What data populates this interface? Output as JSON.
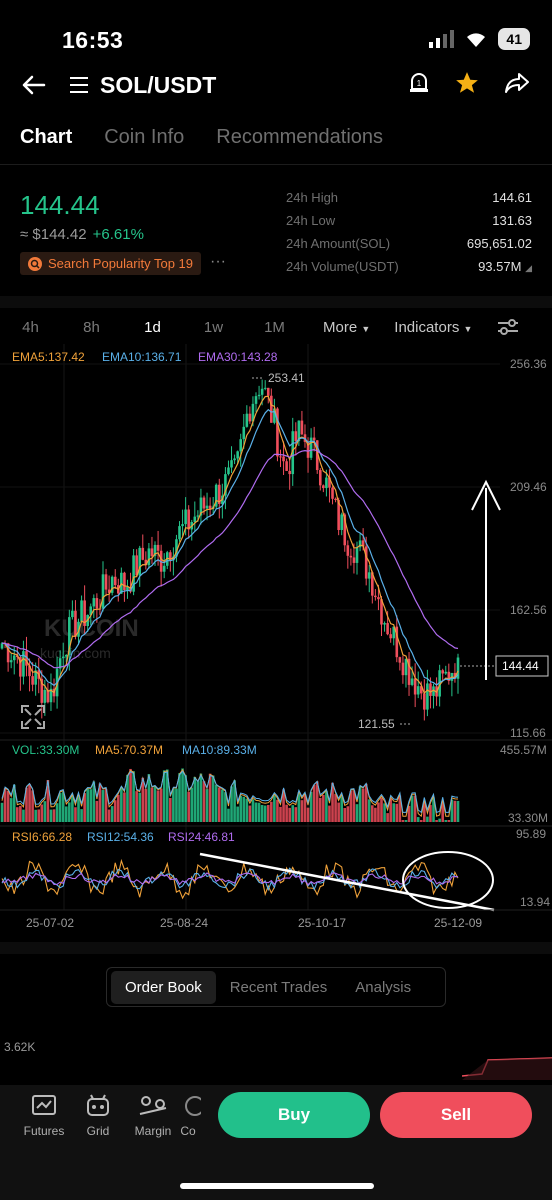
{
  "status": {
    "time": "16:53",
    "battery": "41"
  },
  "nav": {
    "title": "SOL/USDT"
  },
  "tabs": [
    {
      "label": "Chart"
    },
    {
      "label": "Coin Info"
    },
    {
      "label": "Recommendations"
    }
  ],
  "price": {
    "last": "144.44",
    "fiat": "≈ $144.42",
    "change": "+6.61%",
    "badge": "Search Popularity Top 19"
  },
  "stats": [
    {
      "label": "24h High",
      "value": "144.61"
    },
    {
      "label": "24h Low",
      "value": "131.63"
    },
    {
      "label": "24h Amount(SOL)",
      "value": "695,651.02"
    },
    {
      "label": "24h Volume(USDT)",
      "value": "93.57M"
    }
  ],
  "intervals": {
    "items": [
      "4h",
      "8h",
      "1d",
      "1w",
      "1M"
    ],
    "active": "1d",
    "more": "More",
    "indicators": "Indicators"
  },
  "chart": {
    "ema": {
      "ema5": "EMA5:137.42",
      "ema10": "EMA10:136.71",
      "ema30": "EMA30:143.28"
    },
    "price_axis": [
      "256.36",
      "209.46",
      "162.56",
      "115.66"
    ],
    "max_label": "253.41",
    "min_label": "121.55",
    "current_label": "144.44",
    "watermark": "KUCOIN",
    "watermark_url": "kucoin.com",
    "vol": {
      "vol": "VOL:33.30M",
      "ma5": "MA5:70.37M",
      "ma10": "MA10:89.33M",
      "max": "455.57M",
      "cur": "33.30M"
    },
    "rsi": {
      "r6": "RSI6:66.28",
      "r12": "RSI12:54.36",
      "r24": "RSI24:46.81",
      "max": "95.89",
      "min": "13.94"
    },
    "dates": [
      "25-07-02",
      "25-08-24",
      "25-10-17",
      "25-12-09"
    ],
    "colors": {
      "up": "#25c48b",
      "down": "#f04e5c",
      "ema5": "#f0a23a",
      "ema10": "#5ab0e8",
      "ema30": "#b06cf0"
    }
  },
  "chart_data": {
    "type": "candlestick",
    "title": "SOL/USDT",
    "x": [
      "25-07-02",
      "25-08-24",
      "25-10-17",
      "25-12-09"
    ],
    "price_range": [
      115.66,
      256.36
    ],
    "annotations": {
      "high": 253.41,
      "low": 121.55,
      "last": 144.44
    },
    "close_trend": [
      150,
      146,
      140,
      134,
      130,
      150,
      158,
      162,
      168,
      175,
      172,
      180,
      185,
      182,
      190,
      195,
      200,
      205,
      210,
      215,
      240,
      250,
      235,
      215,
      230,
      225,
      215,
      200,
      190,
      185,
      175,
      160,
      150,
      140,
      132,
      130,
      137,
      144
    ]
  },
  "orderbook": {
    "tabs": [
      "Order Book",
      "Recent Trades",
      "Analysis"
    ],
    "level": "3.62K"
  },
  "bottom": {
    "nav": [
      "Futures",
      "Grid",
      "Margin",
      "Co"
    ],
    "buy": "Buy",
    "sell": "Sell"
  }
}
